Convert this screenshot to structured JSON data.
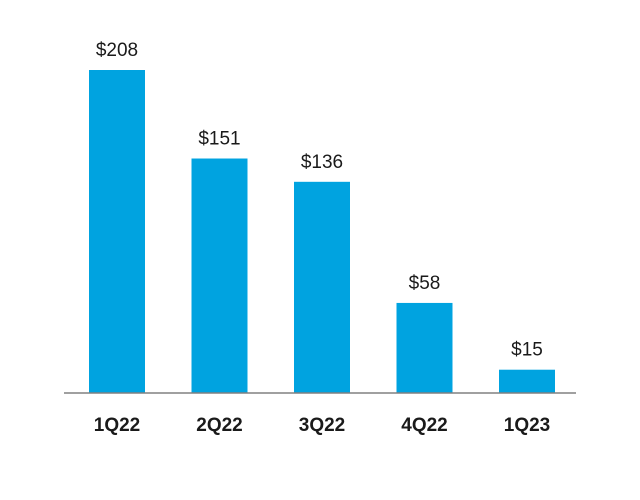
{
  "chart_data": {
    "type": "bar",
    "title": "",
    "xlabel": "",
    "ylabel": "",
    "categories": [
      "1Q22",
      "2Q22",
      "3Q22",
      "4Q22",
      "1Q23"
    ],
    "values": [
      208,
      151,
      136,
      58,
      15
    ],
    "value_labels": [
      "$208",
      "$151",
      "$136",
      "$58",
      "$15"
    ],
    "ylim": [
      0,
      208
    ],
    "grid": false,
    "legend": "none",
    "colors": {
      "bar": "#00a3e0",
      "axis": "#808080",
      "text": "#1a1a1a"
    }
  }
}
